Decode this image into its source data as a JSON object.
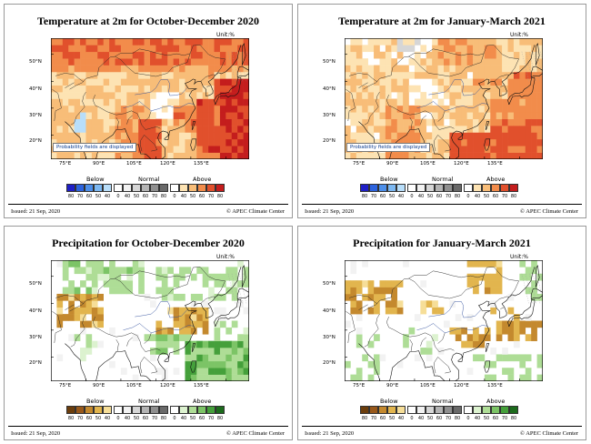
{
  "chart_data": [
    {
      "type": "heatmap",
      "title": "Temperature at 2m for October-December 2020",
      "unit": "Unit:%",
      "lat_ticks": [
        "50°N",
        "40°N",
        "30°N",
        "20°N"
      ],
      "lon_ticks": [
        "75°E",
        "90°E",
        "105°E",
        "120°E",
        "135°E"
      ],
      "note": "Probability fields are displayed",
      "legend": {
        "below": "Below",
        "normal": "Normal",
        "above": "Above",
        "ticks": [
          "80",
          "70",
          "60",
          "50",
          "40",
          "0",
          "40",
          "50",
          "60",
          "70",
          "80",
          "0",
          "40",
          "50",
          "60",
          "70",
          "80"
        ],
        "colors": [
          "#1f1fc6",
          "#2c63de",
          "#4c8fea",
          "#7cb8f2",
          "#b8defa",
          "#ffffff",
          "#f2f2f2",
          "#d6d6d6",
          "#b4b4b4",
          "#8f8f8f",
          "#696969",
          "#ffffff",
          "#fde3b3",
          "#f8bd78",
          "#f28c4b",
          "#e1502c",
          "#c41d1d"
        ]
      },
      "field": "temp_ond"
    },
    {
      "type": "heatmap",
      "title": "Temperature at 2m for January-March 2021",
      "unit": "Unit:%",
      "lat_ticks": [
        "50°N",
        "40°N",
        "30°N",
        "20°N"
      ],
      "lon_ticks": [
        "75°E",
        "90°E",
        "105°E",
        "120°E",
        "135°E"
      ],
      "note": "Probability fields are displayed",
      "legend": {
        "below": "Below",
        "normal": "Normal",
        "above": "Above",
        "ticks": [
          "80",
          "70",
          "60",
          "50",
          "40",
          "0",
          "40",
          "50",
          "60",
          "70",
          "80",
          "0",
          "40",
          "50",
          "60",
          "70",
          "80"
        ],
        "colors": [
          "#1f1fc6",
          "#2c63de",
          "#4c8fea",
          "#7cb8f2",
          "#b8defa",
          "#ffffff",
          "#f2f2f2",
          "#d6d6d6",
          "#b4b4b4",
          "#8f8f8f",
          "#696969",
          "#ffffff",
          "#fde3b3",
          "#f8bd78",
          "#f28c4b",
          "#e1502c",
          "#c41d1d"
        ]
      },
      "field": "temp_jfm"
    },
    {
      "type": "heatmap",
      "title": "Precipitation for October-December 2020",
      "unit": "Unit:%",
      "lat_ticks": [
        "50°N",
        "40°N",
        "30°N",
        "20°N"
      ],
      "lon_ticks": [
        "75°E",
        "90°E",
        "105°E",
        "120°E",
        "135°E"
      ],
      "note": "",
      "legend": {
        "below": "Below",
        "normal": "Normal",
        "above": "Above",
        "ticks": [
          "80",
          "70",
          "60",
          "50",
          "40",
          "0",
          "40",
          "50",
          "60",
          "70",
          "80",
          "0",
          "40",
          "50",
          "60",
          "70",
          "80"
        ],
        "colors": [
          "#6b3d0c",
          "#98581a",
          "#c4892e",
          "#e2b54e",
          "#f6de98",
          "#ffffff",
          "#f2f2f2",
          "#d6d6d6",
          "#b4b4b4",
          "#8f8f8f",
          "#696969",
          "#ffffff",
          "#dcf2cf",
          "#aedd96",
          "#7cc466",
          "#45a03b",
          "#1c6b1c"
        ]
      },
      "field": "precip_ond"
    },
    {
      "type": "heatmap",
      "title": "Precipitation for January-March 2021",
      "unit": "Unit:%",
      "lat_ticks": [
        "50°N",
        "40°N",
        "30°N",
        "20°N"
      ],
      "lon_ticks": [
        "75°E",
        "90°E",
        "105°E",
        "120°E",
        "135°E"
      ],
      "note": "",
      "legend": {
        "below": "Below",
        "normal": "Normal",
        "above": "Above",
        "ticks": [
          "80",
          "70",
          "60",
          "50",
          "40",
          "0",
          "40",
          "50",
          "60",
          "70",
          "80",
          "0",
          "40",
          "50",
          "60",
          "70",
          "80"
        ],
        "colors": [
          "#6b3d0c",
          "#98581a",
          "#c4892e",
          "#e2b54e",
          "#f6de98",
          "#ffffff",
          "#f2f2f2",
          "#d6d6d6",
          "#b4b4b4",
          "#8f8f8f",
          "#696969",
          "#ffffff",
          "#dcf2cf",
          "#aedd96",
          "#7cc466",
          "#45a03b",
          "#1c6b1c"
        ]
      },
      "field": "precip_jfm"
    }
  ],
  "footer": {
    "issued": "Issued: 21 Sep, 2020",
    "credit": "© APEC Climate Center"
  }
}
